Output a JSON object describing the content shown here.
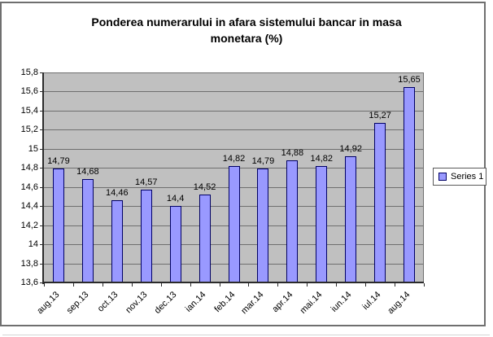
{
  "chart_data": {
    "type": "bar",
    "title": "Ponderea numerarului in afara sistemului bancar in masa monetara (%)",
    "title_lines": [
      "Ponderea numerarului in afara sistemului bancar in masa",
      "monetara (%)"
    ],
    "categories": [
      "aug.13",
      "sep.13",
      "oct.13",
      "nov.13",
      "dec.13",
      "ian.14",
      "feb.14",
      "mar.14",
      "apr.14",
      "mai.14",
      "iun.14",
      "iul.14",
      "aug.14"
    ],
    "series": [
      {
        "name": "Series 1",
        "values": [
          14.79,
          14.68,
          14.46,
          14.57,
          14.4,
          14.52,
          14.82,
          14.79,
          14.88,
          14.82,
          14.92,
          15.27,
          15.65
        ]
      }
    ],
    "value_labels": [
      "14,79",
      "14,68",
      "14,46",
      "14,57",
      "14,4",
      "14,52",
      "14,82",
      "14,79",
      "14,88",
      "14,82",
      "14,92",
      "15,27",
      "15,65"
    ],
    "ylim": [
      13.6,
      15.8
    ],
    "ytick_step": 0.2,
    "ytick_labels": [
      "15,8",
      "15,6",
      "15,4",
      "15,2",
      "15",
      "14,8",
      "14,6",
      "14,4",
      "14,2",
      "14",
      "13,8",
      "13,6"
    ],
    "grid": true,
    "legend_position": "right",
    "legend_label": "Series 1",
    "colors": {
      "bar_fill": "#9999FF",
      "bar_border": "#000066",
      "plot_bg": "#C0C0C0",
      "gridline": "#6F6F6F",
      "axis": "#2B2B2B",
      "text": "#000000",
      "frame_border": "#6F6F6F"
    }
  }
}
